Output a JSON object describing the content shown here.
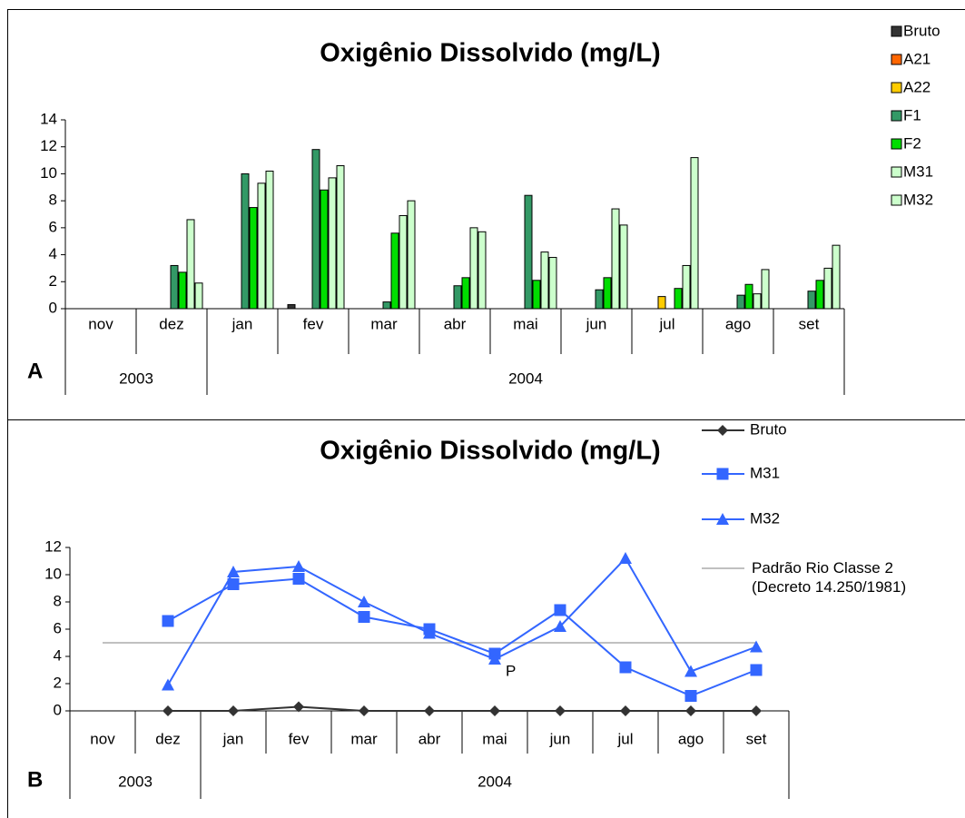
{
  "chart_data": [
    {
      "type": "bar",
      "title": "Oxigênio Dissolvido (mg/L)",
      "panel_label": "A",
      "category_groups": [
        {
          "label": "2003",
          "categories": [
            "nov",
            "dez"
          ]
        },
        {
          "label": "2004",
          "categories": [
            "jan",
            "fev",
            "mar",
            "abr",
            "mai",
            "jun",
            "jul",
            "ago",
            "set"
          ]
        }
      ],
      "ylim": [
        0,
        14
      ],
      "yticks": [
        0,
        2,
        4,
        6,
        8,
        10,
        12,
        14
      ],
      "series": [
        {
          "name": "Bruto",
          "color": "#333333",
          "values": [
            null,
            0,
            0,
            0.3,
            0,
            0,
            0,
            0,
            0,
            0,
            0
          ]
        },
        {
          "name": "A21",
          "color": "#ff6600",
          "values": [
            null,
            null,
            null,
            null,
            null,
            null,
            null,
            null,
            null,
            null,
            null
          ]
        },
        {
          "name": "A22",
          "color": "#ffcc00",
          "values": [
            null,
            null,
            null,
            null,
            null,
            null,
            null,
            null,
            0.9,
            null,
            null
          ]
        },
        {
          "name": "F1",
          "color": "#339966",
          "values": [
            null,
            3.2,
            10.0,
            11.8,
            0.5,
            1.7,
            8.4,
            1.4,
            null,
            1.0,
            1.3
          ]
        },
        {
          "name": "F2",
          "color": "#00dd00",
          "values": [
            null,
            2.7,
            7.5,
            8.8,
            5.6,
            2.3,
            2.1,
            2.3,
            1.5,
            1.8,
            2.1
          ]
        },
        {
          "name": "M31",
          "color": "#ccffcc",
          "values": [
            null,
            6.6,
            9.3,
            9.7,
            6.9,
            6.0,
            4.2,
            7.4,
            3.2,
            1.1,
            3.0
          ]
        },
        {
          "name": "M32",
          "color": "#ccffcc",
          "values": [
            null,
            1.9,
            10.2,
            10.6,
            8.0,
            5.7,
            3.8,
            6.2,
            11.2,
            2.9,
            4.7
          ]
        }
      ]
    },
    {
      "type": "line",
      "title": "Oxigênio Dissolvido (mg/L)",
      "panel_label": "B",
      "annotation": "P",
      "category_groups": [
        {
          "label": "2003",
          "categories": [
            "nov",
            "dez"
          ]
        },
        {
          "label": "2004",
          "categories": [
            "jan",
            "fev",
            "mar",
            "abr",
            "mai",
            "jun",
            "jul",
            "ago",
            "set"
          ]
        }
      ],
      "ylim": [
        0,
        12
      ],
      "yticks": [
        0,
        2,
        4,
        6,
        8,
        10,
        12
      ],
      "series": [
        {
          "name": "Bruto",
          "color": "#333333",
          "marker": "diamond",
          "values": [
            null,
            0,
            0,
            0.3,
            0,
            0,
            0,
            0,
            0,
            0,
            0
          ]
        },
        {
          "name": "M31",
          "color": "#3366ff",
          "marker": "square",
          "values": [
            null,
            6.6,
            9.3,
            9.7,
            6.9,
            6.0,
            4.2,
            7.4,
            3.2,
            1.1,
            3.0
          ]
        },
        {
          "name": "M32",
          "color": "#3366ff",
          "marker": "triangle",
          "values": [
            null,
            1.9,
            10.2,
            10.6,
            8.0,
            5.7,
            3.8,
            6.2,
            11.2,
            2.9,
            4.7
          ]
        },
        {
          "name": "Padrão Rio Classe 2 (Decreto 14.250/1981)",
          "color": "#c0c0c0",
          "marker": "none",
          "values": [
            5,
            5,
            5,
            5,
            5,
            5,
            5,
            5,
            5,
            5,
            5
          ]
        }
      ]
    }
  ]
}
